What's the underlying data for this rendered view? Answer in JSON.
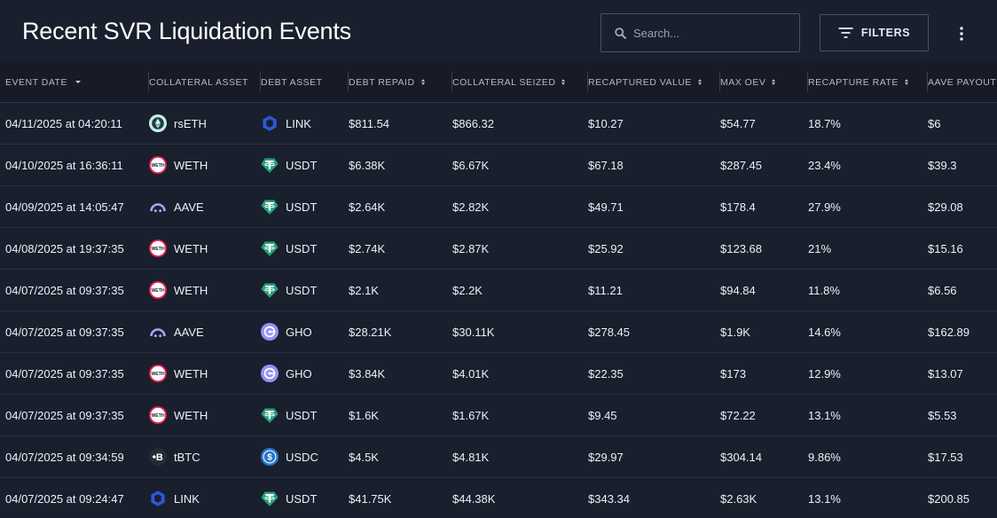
{
  "header": {
    "title": "Recent SVR Liquidation Events",
    "search_placeholder": "Search...",
    "filters_label": "FILTERS"
  },
  "columns": [
    "EVENT DATE",
    "COLLATERAL ASSET",
    "DEBT ASSET",
    "DEBT REPAID",
    "COLLATERAL SEIZED",
    "RECAPTURED VALUE",
    "MAX OEV",
    "RECAPTURE RATE",
    "AAVE PAYOUT"
  ],
  "rows": [
    {
      "date": "04/11/2025 at 04:20:11",
      "collateral": "rsETH",
      "collateral_icon": "rseth-icon",
      "debt": "LINK",
      "debt_icon": "link-icon",
      "debt_repaid": "$811.54",
      "collateral_seized": "$866.32",
      "recaptured_value": "$10.27",
      "max_oev": "$54.77",
      "recapture_rate": "18.7%",
      "aave_payout": "$6"
    },
    {
      "date": "04/10/2025 at 16:36:11",
      "collateral": "WETH",
      "collateral_icon": "weth-icon",
      "debt": "USDT",
      "debt_icon": "usdt-icon",
      "debt_repaid": "$6.38K",
      "collateral_seized": "$6.67K",
      "recaptured_value": "$67.18",
      "max_oev": "$287.45",
      "recapture_rate": "23.4%",
      "aave_payout": "$39.3"
    },
    {
      "date": "04/09/2025 at 14:05:47",
      "collateral": "AAVE",
      "collateral_icon": "aave-icon",
      "debt": "USDT",
      "debt_icon": "usdt-icon",
      "debt_repaid": "$2.64K",
      "collateral_seized": "$2.82K",
      "recaptured_value": "$49.71",
      "max_oev": "$178.4",
      "recapture_rate": "27.9%",
      "aave_payout": "$29.08"
    },
    {
      "date": "04/08/2025 at 19:37:35",
      "collateral": "WETH",
      "collateral_icon": "weth-icon",
      "debt": "USDT",
      "debt_icon": "usdt-icon",
      "debt_repaid": "$2.74K",
      "collateral_seized": "$2.87K",
      "recaptured_value": "$25.92",
      "max_oev": "$123.68",
      "recapture_rate": "21%",
      "aave_payout": "$15.16"
    },
    {
      "date": "04/07/2025 at 09:37:35",
      "collateral": "WETH",
      "collateral_icon": "weth-icon",
      "debt": "USDT",
      "debt_icon": "usdt-icon",
      "debt_repaid": "$2.1K",
      "collateral_seized": "$2.2K",
      "recaptured_value": "$11.21",
      "max_oev": "$94.84",
      "recapture_rate": "11.8%",
      "aave_payout": "$6.56"
    },
    {
      "date": "04/07/2025 at 09:37:35",
      "collateral": "AAVE",
      "collateral_icon": "aave-icon",
      "debt": "GHO",
      "debt_icon": "gho-icon",
      "debt_repaid": "$28.21K",
      "collateral_seized": "$30.11K",
      "recaptured_value": "$278.45",
      "max_oev": "$1.9K",
      "recapture_rate": "14.6%",
      "aave_payout": "$162.89"
    },
    {
      "date": "04/07/2025 at 09:37:35",
      "collateral": "WETH",
      "collateral_icon": "weth-icon",
      "debt": "GHO",
      "debt_icon": "gho-icon",
      "debt_repaid": "$3.84K",
      "collateral_seized": "$4.01K",
      "recaptured_value": "$22.35",
      "max_oev": "$173",
      "recapture_rate": "12.9%",
      "aave_payout": "$13.07"
    },
    {
      "date": "04/07/2025 at 09:37:35",
      "collateral": "WETH",
      "collateral_icon": "weth-icon",
      "debt": "USDT",
      "debt_icon": "usdt-icon",
      "debt_repaid": "$1.6K",
      "collateral_seized": "$1.67K",
      "recaptured_value": "$9.45",
      "max_oev": "$72.22",
      "recapture_rate": "13.1%",
      "aave_payout": "$5.53"
    },
    {
      "date": "04/07/2025 at 09:34:59",
      "collateral": "tBTC",
      "collateral_icon": "tbtc-icon",
      "debt": "USDC",
      "debt_icon": "usdc-icon",
      "debt_repaid": "$4.5K",
      "collateral_seized": "$4.81K",
      "recaptured_value": "$29.97",
      "max_oev": "$304.14",
      "recapture_rate": "9.86%",
      "aave_payout": "$17.53"
    },
    {
      "date": "04/07/2025 at 09:24:47",
      "collateral": "LINK",
      "collateral_icon": "link-icon",
      "debt": "USDT",
      "debt_icon": "usdt-icon",
      "debt_repaid": "$41.75K",
      "collateral_seized": "$44.38K",
      "recaptured_value": "$343.34",
      "max_oev": "$2.63K",
      "recapture_rate": "13.1%",
      "aave_payout": "$200.85"
    }
  ],
  "colors": {
    "background": "#1a1f2e",
    "header_row": "#171b28",
    "link": "#2a5ada",
    "usdt": "#26a17b",
    "gho": "#9391f7",
    "usdc": "#2775ca",
    "aave": "#a3a8f5"
  }
}
